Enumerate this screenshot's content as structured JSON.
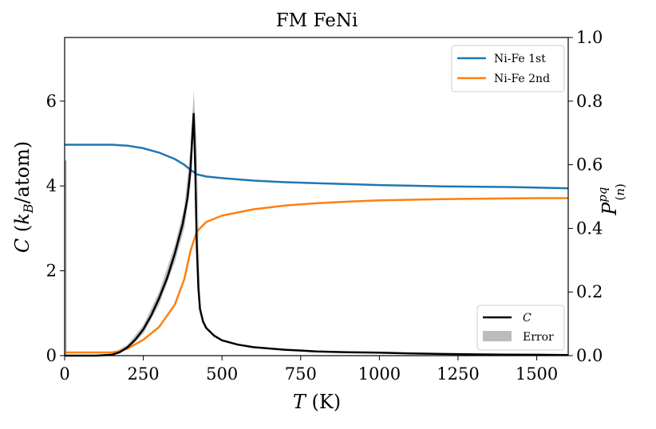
{
  "chart_data": {
    "type": "line",
    "title": "FM FeNi",
    "xlabel": "T (K)",
    "ylabel_left": "C (k_B/atom)",
    "ylabel_right": "P^{pq}_{(n)}",
    "xlim": [
      0,
      1600
    ],
    "ylim_left": [
      0,
      7.5
    ],
    "ylim_right": [
      0,
      1.0
    ],
    "x_ticks": [
      0,
      250,
      500,
      750,
      1000,
      1250,
      1500
    ],
    "x_tick_labels": [
      "0",
      "250",
      "500",
      "750",
      "1000",
      "1250",
      "1500"
    ],
    "y_left_ticks": [
      0,
      2,
      4,
      6
    ],
    "y_left_tick_labels": [
      "0",
      "2",
      "4",
      "6"
    ],
    "y_right_ticks": [
      0.0,
      0.2,
      0.4,
      0.6,
      0.8,
      1.0
    ],
    "y_right_tick_labels": [
      "0.0",
      "0.2",
      "0.4",
      "0.6",
      "0.8",
      "1.0"
    ],
    "grid": false,
    "legend_top": {
      "placement": "top-right",
      "entries": [
        "Ni-Fe 1st",
        "Ni-Fe 2nd"
      ]
    },
    "legend_bottom": {
      "placement": "bottom-right",
      "entries": [
        "C",
        "Error"
      ]
    },
    "colors": {
      "ni_fe_1st": "#1f77b4",
      "ni_fe_2nd": "#ff7f0e",
      "heat_capacity": "#000000",
      "error": "#9e9e9e"
    },
    "series": [
      {
        "name": "Ni-Fe 1st",
        "axis": "right",
        "x": [
          0,
          100,
          150,
          200,
          250,
          300,
          350,
          380,
          400,
          420,
          450,
          500,
          600,
          700,
          800,
          900,
          1000,
          1100,
          1200,
          1300,
          1400,
          1500,
          1600
        ],
        "y": [
          0.663,
          0.663,
          0.663,
          0.66,
          0.652,
          0.638,
          0.618,
          0.6,
          0.584,
          0.57,
          0.563,
          0.558,
          0.55,
          0.545,
          0.542,
          0.539,
          0.536,
          0.534,
          0.532,
          0.531,
          0.53,
          0.528,
          0.526
        ]
      },
      {
        "name": "Ni-Fe 2nd",
        "axis": "right",
        "x": [
          0,
          100,
          150,
          175,
          200,
          250,
          300,
          350,
          380,
          400,
          420,
          450,
          500,
          600,
          700,
          800,
          900,
          1000,
          1100,
          1200,
          1300,
          1400,
          1500,
          1600
        ],
        "y": [
          0.01,
          0.01,
          0.01,
          0.014,
          0.022,
          0.05,
          0.09,
          0.16,
          0.24,
          0.33,
          0.39,
          0.42,
          0.44,
          0.46,
          0.472,
          0.479,
          0.484,
          0.488,
          0.49,
          0.492,
          0.493,
          0.494,
          0.495,
          0.495
        ]
      },
      {
        "name": "C",
        "axis": "left",
        "x": [
          0,
          100,
          150,
          175,
          200,
          225,
          250,
          275,
          300,
          325,
          350,
          375,
          390,
          400,
          405,
          410,
          415,
          420,
          425,
          430,
          440,
          450,
          475,
          500,
          550,
          600,
          700,
          800,
          900,
          1000,
          1100,
          1200,
          1300,
          1400,
          1500,
          1600
        ],
        "y": [
          0,
          0,
          0.02,
          0.08,
          0.2,
          0.38,
          0.62,
          0.95,
          1.35,
          1.82,
          2.4,
          3.1,
          3.7,
          4.4,
          5.1,
          5.7,
          4.4,
          2.6,
          1.6,
          1.1,
          0.8,
          0.65,
          0.47,
          0.36,
          0.26,
          0.2,
          0.14,
          0.1,
          0.08,
          0.07,
          0.05,
          0.04,
          0.03,
          0.025,
          0.02,
          0.015
        ]
      }
    ],
    "error_band": {
      "name": "Error",
      "axis": "left",
      "x": [
        150,
        200,
        250,
        300,
        350,
        380,
        400,
        410,
        420,
        430
      ],
      "upper": [
        0.05,
        0.26,
        0.72,
        1.5,
        2.6,
        3.5,
        4.9,
        6.25,
        4.9,
        1.3
      ],
      "lower": [
        0,
        0.14,
        0.52,
        1.2,
        2.2,
        3.0,
        4.0,
        5.3,
        4.2,
        1.0
      ]
    },
    "spike_at_zero": {
      "x": 0,
      "y_upper": 4.6
    }
  }
}
